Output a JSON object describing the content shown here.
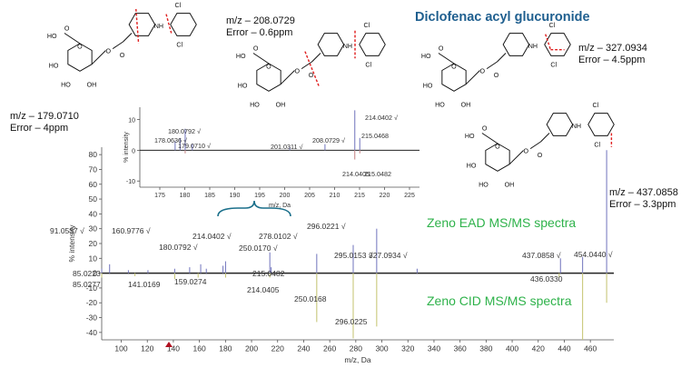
{
  "figure": {
    "title": "Diclofenac acyl glucuronide",
    "labels": {
      "ead": "Zeno EAD MS/MS spectra",
      "cid": "Zeno CID MS/MS spectra"
    },
    "fragments": [
      {
        "mz": "m/z – 179.0710",
        "error": "Error – 4ppm"
      },
      {
        "mz": "m/z – 208.0729",
        "error": "Error – 0.6ppm"
      },
      {
        "mz": "m/z – 327.0934",
        "error": "Error – 4.5ppm"
      },
      {
        "mz": "m/z – 437.0858",
        "error": "Error – 3.3ppm"
      }
    ],
    "colors": {
      "title": "#1f5f8f",
      "spec_label": "#2eb24a",
      "cut": "#e02020",
      "bracket": "#1a6f8a"
    }
  },
  "chart_data": [
    {
      "type": "bar",
      "xlabel": "m/z, Da",
      "ylabel": "% intensity",
      "xlim": [
        85,
        478
      ],
      "ylim": [
        -45,
        85
      ],
      "xticks": [
        100,
        120,
        140,
        160,
        180,
        200,
        220,
        240,
        260,
        280,
        300,
        320,
        340,
        360,
        380,
        400,
        420,
        440,
        460
      ],
      "yticks": [
        -40,
        -30,
        -20,
        -10,
        0,
        10,
        20,
        30,
        40,
        50,
        60,
        70,
        80
      ],
      "series": [
        {
          "name": "Zeno EAD MS/MS spectra",
          "peaks": [
            {
              "x": 85.0223,
              "y": 3
            },
            {
              "x": 91.0537,
              "y": 6
            },
            {
              "x": 105.5,
              "y": 2
            },
            {
              "x": 120.5,
              "y": 2
            },
            {
              "x": 141.0169,
              "y": 3
            },
            {
              "x": 152.5,
              "y": 4
            },
            {
              "x": 160.9776,
              "y": 6
            },
            {
              "x": 165.3,
              "y": 3
            },
            {
              "x": 178.0636,
              "y": 5
            },
            {
              "x": 180.0792,
              "y": 8
            },
            {
              "x": 214.0402,
              "y": 14
            },
            {
              "x": 215.0482,
              "y": 4
            },
            {
              "x": 250.017,
              "y": 13
            },
            {
              "x": 278.0102,
              "y": 19
            },
            {
              "x": 296.0221,
              "y": 30
            },
            {
              "x": 327.0934,
              "y": 3
            },
            {
              "x": 437.0858,
              "y": 10
            },
            {
              "x": 454.044,
              "y": 11
            },
            {
              "x": 472.5,
              "y": 83
            }
          ]
        },
        {
          "name": "Zeno CID MS/MS spectra",
          "peaks": [
            {
              "x": 85.0277,
              "y": -3
            },
            {
              "x": 110.5,
              "y": -2
            },
            {
              "x": 141.0169,
              "y": -4
            },
            {
              "x": 159.0274,
              "y": -3
            },
            {
              "x": 180.0792,
              "y": -3
            },
            {
              "x": 214.0405,
              "y": -3
            },
            {
              "x": 250.0168,
              "y": -33
            },
            {
              "x": 278.0102,
              "y": -44
            },
            {
              "x": 296.0225,
              "y": -36
            },
            {
              "x": 436.033,
              "y": -3
            },
            {
              "x": 454.044,
              "y": -45
            },
            {
              "x": 472.5,
              "y": -20
            }
          ]
        }
      ],
      "peak_labels": [
        {
          "text": "91.0537 √",
          "x": 91.0537
        },
        {
          "text": "160.9776 √",
          "x": 160.9776
        },
        {
          "text": "180.0792 √",
          "x": 180.0792
        },
        {
          "text": "214.0402 √",
          "x": 214.0402
        },
        {
          "text": "250.0170 √",
          "x": 250.017
        },
        {
          "text": "278.0102 √",
          "x": 278.0102
        },
        {
          "text": "296.0221 √",
          "x": 296.0221
        },
        {
          "text": "295.0153 √",
          "x": 295.0153
        },
        {
          "text": "327.0934 √",
          "x": 327.0934
        },
        {
          "text": "437.0858 √",
          "x": 437.0858
        },
        {
          "text": "454.0440 √",
          "x": 454.044
        },
        {
          "text": "85.0223",
          "x": 85.0223
        },
        {
          "text": "85.0277",
          "x": 85.0277
        },
        {
          "text": "141.0169",
          "x": 141.0169
        },
        {
          "text": "159.0274",
          "x": 159.0274
        },
        {
          "text": "215.0482",
          "x": 215.0482
        },
        {
          "text": "214.0405",
          "x": 214.0405
        },
        {
          "text": "250.0168",
          "x": 250.0168
        },
        {
          "text": "296.0225",
          "x": 296.0225
        },
        {
          "text": "436.0330",
          "x": 436.033
        }
      ]
    },
    {
      "type": "bar",
      "xlabel": "m/z, Da",
      "ylabel": "% intensity",
      "xlim": [
        171,
        227
      ],
      "ylim": [
        -12,
        14
      ],
      "xticks": [
        175,
        180,
        185,
        190,
        195,
        200,
        205,
        210,
        215,
        220,
        225
      ],
      "yticks": [
        -10,
        0,
        10
      ],
      "series": [
        {
          "name": "Zeno EAD MS/MS spectra",
          "peaks": [
            {
              "x": 178.0636,
              "y": 3
            },
            {
              "x": 179.071,
              "y": 4
            },
            {
              "x": 180.0792,
              "y": 7
            },
            {
              "x": 181.5,
              "y": 2
            },
            {
              "x": 201.0311,
              "y": 1
            },
            {
              "x": 208.0729,
              "y": 2
            },
            {
              "x": 214.0402,
              "y": 13
            },
            {
              "x": 215.0468,
              "y": 4
            }
          ]
        },
        {
          "name": "Zeno CID MS/MS spectra",
          "peaks": [
            {
              "x": 180.0792,
              "y": -1
            },
            {
              "x": 214.0405,
              "y": -3
            },
            {
              "x": 215.0482,
              "y": -1
            }
          ]
        }
      ],
      "peak_labels": [
        {
          "text": "178.0636 √",
          "x": 178.0636
        },
        {
          "text": "180.0792 √",
          "x": 180.0792
        },
        {
          "text": "179.0710 √",
          "x": 179.071
        },
        {
          "text": "201.0311 √",
          "x": 201.0311
        },
        {
          "text": "208.0729 √",
          "x": 208.0729
        },
        {
          "text": "214.0402 √",
          "x": 214.0402
        },
        {
          "text": "215.0468",
          "x": 215.0468
        },
        {
          "text": "214.0405",
          "x": 214.0405
        },
        {
          "text": "215.0482",
          "x": 215.0482
        }
      ]
    }
  ],
  "structure_text": {
    "cl": "Cl",
    "nh": "NH",
    "ho": "HO",
    "oh": "OH",
    "o": "O"
  }
}
